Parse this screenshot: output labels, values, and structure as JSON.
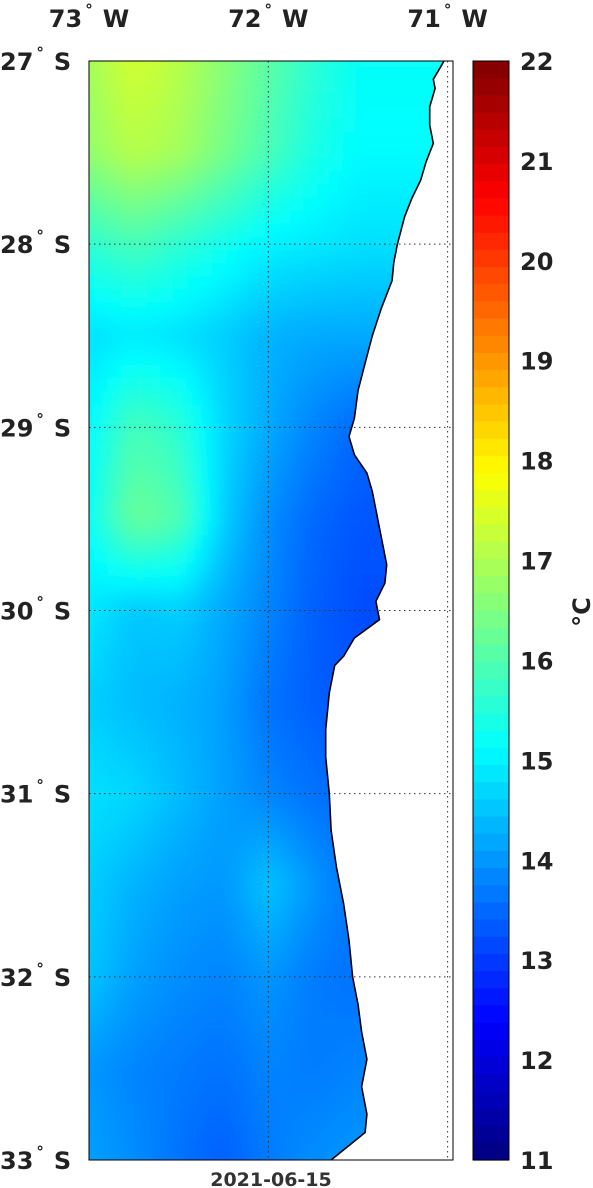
{
  "date": "2021-06-15",
  "chart_data": {
    "type": "heatmap",
    "variable": "sea surface temperature",
    "units_label": "°C",
    "lon_ticks": [
      {
        "value": -73,
        "deg": "73",
        "hem": "W"
      },
      {
        "value": -72,
        "deg": "72",
        "hem": "W"
      },
      {
        "value": -71,
        "deg": "71",
        "hem": "W"
      }
    ],
    "lat_ticks": [
      {
        "value": -27,
        "deg": "27",
        "hem": "S"
      },
      {
        "value": -28,
        "deg": "28",
        "hem": "S"
      },
      {
        "value": -29,
        "deg": "29",
        "hem": "S"
      },
      {
        "value": -30,
        "deg": "30",
        "hem": "S"
      },
      {
        "value": -31,
        "deg": "31",
        "hem": "S"
      },
      {
        "value": -32,
        "deg": "32",
        "hem": "S"
      },
      {
        "value": -33,
        "deg": "33",
        "hem": "S"
      }
    ],
    "lon_range": [
      -73.0,
      -70.97
    ],
    "lat_range": [
      -33.0,
      -27.0
    ],
    "colorbar": {
      "colormap": "jet",
      "range": [
        11,
        22
      ],
      "ticks": [
        "11",
        "12",
        "13",
        "14",
        "15",
        "16",
        "17",
        "18",
        "19",
        "20",
        "21",
        "22"
      ]
    },
    "grid": true,
    "coastline": [
      [
        -71.02,
        -27.0
      ],
      [
        -71.05,
        -27.05
      ],
      [
        -71.08,
        -27.1
      ],
      [
        -71.07,
        -27.15
      ],
      [
        -71.1,
        -27.25
      ],
      [
        -71.1,
        -27.35
      ],
      [
        -71.08,
        -27.45
      ],
      [
        -71.12,
        -27.55
      ],
      [
        -71.15,
        -27.65
      ],
      [
        -71.2,
        -27.75
      ],
      [
        -71.24,
        -27.85
      ],
      [
        -71.28,
        -28.0
      ],
      [
        -71.3,
        -28.1
      ],
      [
        -71.31,
        -28.2
      ],
      [
        -71.37,
        -28.35
      ],
      [
        -71.42,
        -28.5
      ],
      [
        -71.46,
        -28.65
      ],
      [
        -71.5,
        -28.8
      ],
      [
        -71.52,
        -28.95
      ],
      [
        -71.55,
        -29.05
      ],
      [
        -71.52,
        -29.15
      ],
      [
        -71.45,
        -29.25
      ],
      [
        -71.42,
        -29.35
      ],
      [
        -71.4,
        -29.45
      ],
      [
        -71.38,
        -29.55
      ],
      [
        -71.36,
        -29.65
      ],
      [
        -71.34,
        -29.75
      ],
      [
        -71.35,
        -29.85
      ],
      [
        -71.4,
        -29.95
      ],
      [
        -71.38,
        -30.05
      ],
      [
        -71.52,
        -30.15
      ],
      [
        -71.58,
        -30.25
      ],
      [
        -71.63,
        -30.3
      ],
      [
        -71.66,
        -30.45
      ],
      [
        -71.68,
        -30.65
      ],
      [
        -71.68,
        -30.8
      ],
      [
        -71.66,
        -31.0
      ],
      [
        -71.65,
        -31.2
      ],
      [
        -71.62,
        -31.4
      ],
      [
        -71.58,
        -31.6
      ],
      [
        -71.55,
        -31.8
      ],
      [
        -71.53,
        -32.0
      ],
      [
        -71.5,
        -32.15
      ],
      [
        -71.48,
        -32.3
      ],
      [
        -71.45,
        -32.45
      ],
      [
        -71.48,
        -32.6
      ],
      [
        -71.45,
        -32.75
      ],
      [
        -71.46,
        -32.85
      ],
      [
        -71.65,
        -33.0
      ]
    ],
    "sst_samples": [
      {
        "lat": -27.0,
        "values": [
          16.9,
          17.4,
          17.1,
          16.6,
          16.1,
          15.6,
          15.2
        ]
      },
      {
        "lat": -27.5,
        "values": [
          16.7,
          17.1,
          16.9,
          16.4,
          15.9,
          15.4,
          15.1
        ]
      },
      {
        "lat": -28.0,
        "values": [
          15.6,
          15.9,
          15.6,
          15.3,
          15.0,
          14.9,
          14.8
        ]
      },
      {
        "lat": -28.5,
        "values": [
          14.8,
          14.9,
          14.8,
          14.6,
          14.3,
          14.2,
          14.2
        ]
      },
      {
        "lat": -29.0,
        "values": [
          15.1,
          15.9,
          15.6,
          14.7,
          14.2,
          13.8,
          13.5
        ]
      },
      {
        "lat": -29.5,
        "values": [
          15.2,
          16.3,
          16.0,
          14.6,
          13.9,
          13.5,
          13.3
        ]
      },
      {
        "lat": -30.0,
        "values": [
          14.9,
          14.5,
          14.6,
          14.2,
          13.8,
          13.4,
          13.2
        ]
      },
      {
        "lat": -30.5,
        "values": [
          14.6,
          14.4,
          14.3,
          14.1,
          13.6,
          13.4,
          13.3
        ]
      },
      {
        "lat": -31.0,
        "values": [
          14.8,
          14.7,
          14.4,
          14.1,
          13.8,
          13.6,
          13.5
        ]
      },
      {
        "lat": -31.5,
        "values": [
          14.6,
          14.3,
          14.1,
          14.0,
          14.5,
          14.0,
          13.6
        ]
      },
      {
        "lat": -32.0,
        "values": [
          14.5,
          14.1,
          13.9,
          13.8,
          14.0,
          13.7,
          13.6
        ]
      },
      {
        "lat": -32.5,
        "values": [
          14.0,
          13.8,
          13.7,
          13.6,
          13.8,
          13.7,
          13.8
        ]
      },
      {
        "lat": -33.0,
        "values": [
          14.1,
          13.9,
          13.6,
          13.4,
          13.7,
          13.9,
          14.0
        ]
      }
    ],
    "sst_sample_lons": [
      -73.0,
      -72.75,
      -72.5,
      -72.25,
      -72.0,
      -71.75,
      -71.5
    ]
  }
}
